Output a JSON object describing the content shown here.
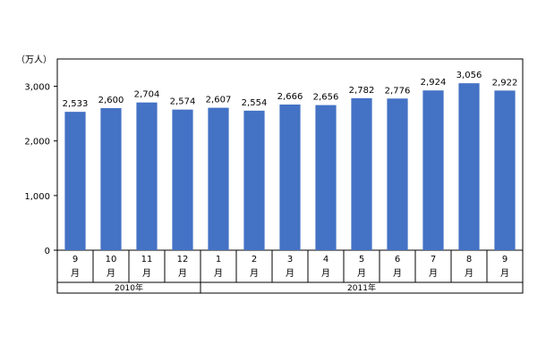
{
  "chart_data": {
    "type": "bar",
    "unit_label": "（万人）",
    "categories": [
      {
        "num": "9",
        "unit": "月"
      },
      {
        "num": "10",
        "unit": "月"
      },
      {
        "num": "11",
        "unit": "月"
      },
      {
        "num": "12",
        "unit": "月"
      },
      {
        "num": "1",
        "unit": "月"
      },
      {
        "num": "2",
        "unit": "月"
      },
      {
        "num": "3",
        "unit": "月"
      },
      {
        "num": "4",
        "unit": "月"
      },
      {
        "num": "5",
        "unit": "月"
      },
      {
        "num": "6",
        "unit": "月"
      },
      {
        "num": "7",
        "unit": "月"
      },
      {
        "num": "8",
        "unit": "月"
      },
      {
        "num": "9",
        "unit": "月"
      }
    ],
    "values": [
      2533,
      2600,
      2704,
      2574,
      2607,
      2554,
      2666,
      2656,
      2782,
      2776,
      2924,
      3056,
      2922
    ],
    "value_labels": [
      "2,533",
      "2,600",
      "2,704",
      "2,574",
      "2,607",
      "2,554",
      "2,666",
      "2,656",
      "2,782",
      "2,776",
      "2,924",
      "3,056",
      "2,922"
    ],
    "ylim": [
      0,
      3500
    ],
    "yticks": [
      {
        "value": 0,
        "label": "0"
      },
      {
        "value": 1000,
        "label": "1,000"
      },
      {
        "value": 2000,
        "label": "2,000"
      },
      {
        "value": 3000,
        "label": "3,000"
      }
    ],
    "groups": [
      {
        "label": "2010年",
        "span": 4
      },
      {
        "label": "2011年",
        "span": 9
      }
    ],
    "bar_color": "#4472c4",
    "grid": false,
    "legend": "none"
  }
}
